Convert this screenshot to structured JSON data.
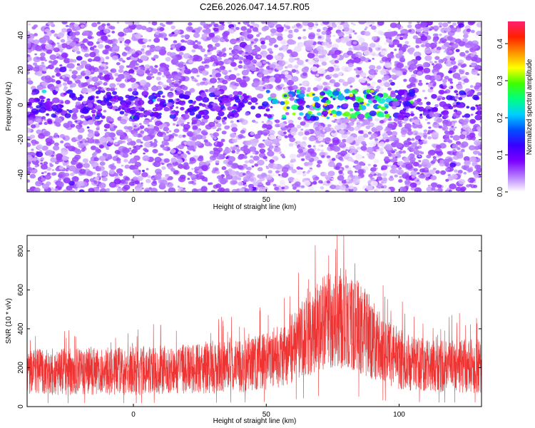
{
  "title": "C2E6.2026.047.14.57.R05",
  "chart_data": [
    {
      "type": "heatmap",
      "xlabel": "Height of straight line (km)",
      "ylabel": "Frequency (Hz)",
      "xlim": [
        -40,
        131
      ],
      "ylim": [
        -50,
        48
      ],
      "x_ticks": [
        0,
        50,
        100
      ],
      "y_ticks": [
        40,
        20,
        0,
        -20,
        -40
      ],
      "colorbar": {
        "label": "Normalized spectral amplitude",
        "range": [
          0.0,
          0.46
        ],
        "ticks": [
          0.0,
          0.1,
          0.2,
          0.3,
          0.4
        ],
        "colors": [
          "#ffffff",
          "#b57bff",
          "#7a00ff",
          "#3a00ff",
          "#0050ff",
          "#00d0ff",
          "#00ff80",
          "#40ff00",
          "#ffff00",
          "#ff9000",
          "#ff2000",
          "#ff2070"
        ]
      },
      "band": {
        "center_freq": 0,
        "half_width_freq": 8,
        "x_start": 50,
        "x_end": 97,
        "peak_amplitude": 0.3
      }
    },
    {
      "type": "line",
      "xlabel": "Height of straight line (km)",
      "ylabel": "SNR (10 * v/v)",
      "xlim": [
        -40,
        131
      ],
      "ylim": [
        0,
        880
      ],
      "x_ticks": [
        0,
        50,
        100
      ],
      "y_ticks": [
        0,
        200,
        400,
        600,
        800
      ],
      "color": "#ee3333",
      "envelope": {
        "x": [
          -40,
          -20,
          0,
          20,
          40,
          55,
          62,
          70,
          76,
          82,
          88,
          95,
          105,
          115,
          131
        ],
        "low": [
          60,
          60,
          60,
          65,
          70,
          90,
          130,
          180,
          200,
          190,
          150,
          100,
          80,
          70,
          70
        ],
        "high": [
          300,
          300,
          310,
          320,
          340,
          400,
          520,
          650,
          720,
          700,
          600,
          450,
          360,
          340,
          350
        ],
        "max": 880
      }
    }
  ]
}
